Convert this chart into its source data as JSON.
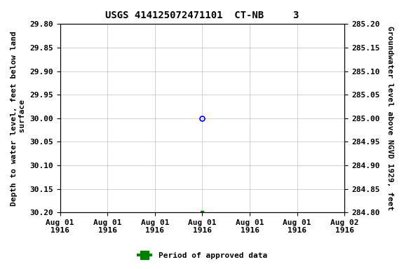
{
  "title": "USGS 414125072471101  CT-NB     3",
  "ylabel_left": "Depth to water level, feet below land\n surface",
  "ylabel_right": "Groundwater level above NGVD 1929, feet",
  "ylim_left": [
    30.2,
    29.8
  ],
  "ylim_right": [
    284.8,
    285.2
  ],
  "yticks_left": [
    29.8,
    29.85,
    29.9,
    29.95,
    30.0,
    30.05,
    30.1,
    30.15,
    30.2
  ],
  "yticks_right": [
    285.2,
    285.15,
    285.1,
    285.05,
    285.0,
    284.95,
    284.9,
    284.85,
    284.8
  ],
  "open_circle_color": "#0000ff",
  "green_dot_color": "#008000",
  "background_color": "#ffffff",
  "grid_color": "#c0c0c0",
  "legend_label": "Period of approved data",
  "legend_color": "#008000",
  "title_fontsize": 10,
  "axis_label_fontsize": 8,
  "tick_label_fontsize": 8,
  "xtick_labels": [
    "Aug 01\n1916",
    "Aug 01\n1916",
    "Aug 01\n1916",
    "Aug 01\n1916",
    "Aug 01\n1916",
    "Aug 01\n1916",
    "Aug 02\n1916"
  ]
}
